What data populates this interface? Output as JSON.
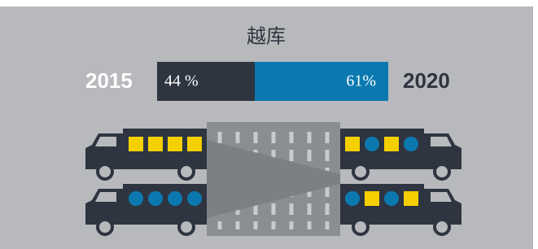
{
  "title": "越库",
  "comparison": {
    "left": {
      "year": "2015",
      "label": "44 %"
    },
    "right": {
      "year": "2020",
      "label": "61%"
    }
  }
}
